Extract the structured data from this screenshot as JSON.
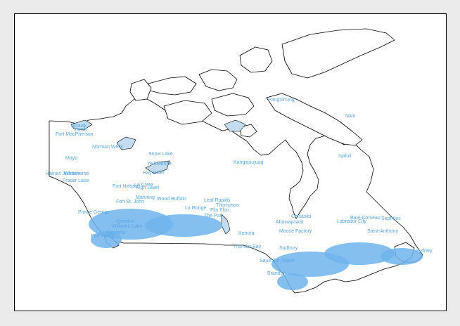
{
  "map": {
    "title": "",
    "colors": {
      "label": "#5aa7e6",
      "cluster": "#6fb4ec",
      "land_stroke": "#000000",
      "lake_fill": "#c3dcef",
      "background": "#ebebeb",
      "plot_background": "#ffffff"
    },
    "labels": [
      "Aklavik",
      "Inuvik",
      "Fort MacPherson",
      "Norman Wells",
      "Mayo",
      "Snow Lake",
      "Yellowknife",
      "Haines Junction",
      "Whitehorse",
      "Fraser Lake",
      "La Crete",
      "Fort Nelson",
      "High Level",
      "Hay River",
      "Fort St. John",
      "Manning",
      "Wood Buffalo",
      "Leaf Rapids",
      "Thompson",
      "La Ronge",
      "Flin Flon",
      "The Pas",
      "Prince George",
      "Quesnel",
      "Williams Lake",
      "Kelowna",
      "Port Hardy",
      "Kangiqsujuaq",
      "Pangnirtung",
      "Iqaluit",
      "Nain",
      "Chisasibi",
      "Attawapiskat",
      "Moose Factory",
      "Labrador City",
      "Sept-Iles",
      "Baie-Comeau",
      "Saint-Anthony",
      "Sault Ste. Marie",
      "Thunder Bay",
      "Sudbury",
      "Brandon",
      "Kenora",
      "Sydney"
    ]
  }
}
